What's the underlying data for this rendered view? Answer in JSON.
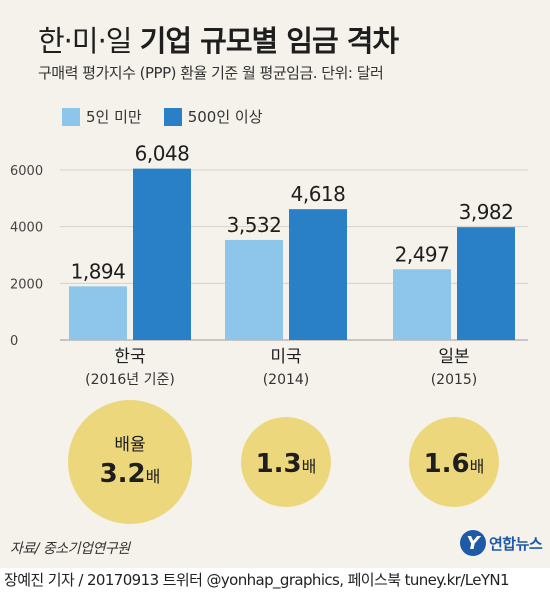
{
  "header": {
    "title_light": "한·미·일",
    "title_bold": "기업 규모별 임금 격차",
    "subtitle": "구매력 평가지수 (PPP) 환율 기준 월 평균임금. 단위: 달러"
  },
  "chart_data": {
    "type": "bar",
    "categories": [
      "한국",
      "미국",
      "일본"
    ],
    "category_sublabels": [
      "(2016년 기준)",
      "(2014)",
      "(2015)"
    ],
    "series": [
      {
        "name": "5인 미만",
        "color": "#8ec5ea",
        "values": [
          1894,
          3532,
          2497
        ],
        "labels": [
          "1,894",
          "3,532",
          "2,497"
        ]
      },
      {
        "name": "500인 이상",
        "color": "#2a80c6",
        "values": [
          6048,
          4618,
          3982
        ],
        "labels": [
          "6,048",
          "4,618",
          "3,982"
        ]
      }
    ],
    "yticks": [
      0,
      2000,
      4000,
      6000
    ],
    "ylim": [
      0,
      6000
    ],
    "grid": true,
    "ratios": [
      {
        "label": "배율",
        "value": "3.2",
        "unit": "배"
      },
      {
        "label": "",
        "value": "1.3",
        "unit": "배"
      },
      {
        "label": "",
        "value": "1.6",
        "unit": "배"
      }
    ],
    "ratio_color": "#ecd77c"
  },
  "footer": {
    "source": "자료/ 중소기업연구원",
    "logo_mark": "Y",
    "logo_name": "연합뉴스",
    "credit": "장예진 기자 / 20170913 트위터 @yonhap_graphics, 페이스북 tuney.kr/LeYN1"
  }
}
